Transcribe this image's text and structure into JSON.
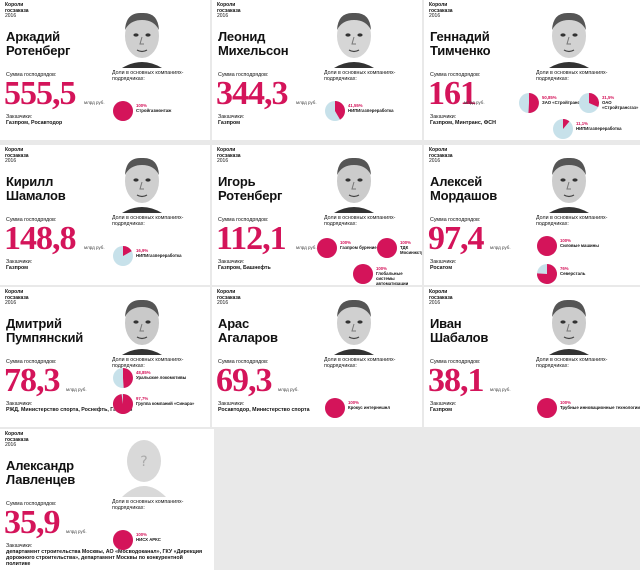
{
  "header": {
    "line1": "Короли",
    "line2": "госзаказа",
    "year": "2016"
  },
  "labels": {
    "sum": "Сумма господрядов:",
    "share": "Доли в основных компаниях-подрядчиках:",
    "customers": "Заказчики:",
    "unit": "млрд руб."
  },
  "colors": {
    "accent": "#d4145a",
    "share_light": "#c7e1ea"
  },
  "people": [
    {
      "name1": "Аркадий",
      "name2": "Ротенберг",
      "amount": "555,5",
      "customers": "Газпром, Росавтодор",
      "companies": [
        {
          "pct": "100%",
          "name": "Стройгазмонтаж",
          "share": 1.0
        }
      ]
    },
    {
      "name1": "Леонид",
      "name2": "Михельсон",
      "amount": "344,3",
      "customers": "Газпром",
      "companies": [
        {
          "pct": "41,55%",
          "name": "НИПИгазпереработка",
          "share": 0.4155
        }
      ]
    },
    {
      "name1": "Геннадий",
      "name2": "Тимченко",
      "amount": "161",
      "customers": "Газпром, Минтранс, ФСН",
      "companies": [
        {
          "pct": "50,85%",
          "name": "ЗАО «Стройтрансгаз»",
          "share": 0.5085
        },
        {
          "pct": "31,5%",
          "name": "ОАО «Стройтрансгаз»",
          "share": 0.315
        },
        {
          "pct": "11,1%",
          "name": "НИПИгазпереработка",
          "share": 0.111
        }
      ]
    },
    {
      "name1": "Кирилл",
      "name2": "Шамалов",
      "amount": "148,8",
      "customers": "Газпром",
      "companies": [
        {
          "pct": "16,9%",
          "name": "НИПИгазпереработка",
          "share": 0.169
        }
      ]
    },
    {
      "name1": "Игорь",
      "name2": "Ротенберг",
      "amount": "112,1",
      "customers": "Газпром, Башнефть",
      "companies": [
        {
          "pct": "100%",
          "name": "Газпром бурение",
          "share": 1.0
        },
        {
          "pct": "100%",
          "name": "ТДК Мосинжстр",
          "share": 1.0
        },
        {
          "pct": "100%",
          "name": "Глобальные системы автоматизации",
          "share": 1.0
        }
      ]
    },
    {
      "name1": "Алексей",
      "name2": "Мордашов",
      "amount": "97,4",
      "customers": "Росатом",
      "companies": [
        {
          "pct": "100%",
          "name": "Силовые машины",
          "share": 1.0
        },
        {
          "pct": "76%",
          "name": "Северсталь",
          "share": 0.76
        }
      ]
    },
    {
      "name1": "Дмитрий",
      "name2": "Пумпянский",
      "amount": "78,3",
      "customers": "РЖД, Министерство спорта, Роснефть, Газпром",
      "companies": [
        {
          "pct": "48,85%",
          "name": "Уральские локомотивы",
          "share": 0.4885
        },
        {
          "pct": "97,7%",
          "name": "Группа компаний «Синара»",
          "share": 0.977
        }
      ]
    },
    {
      "name1": "Арас",
      "name2": "Агаларов",
      "amount": "69,3",
      "customers": "Росавтодор, Министерство спорта",
      "companies": [
        {
          "pct": "100%",
          "name": "Крокус интернешнл",
          "share": 1.0
        }
      ]
    },
    {
      "name1": "Иван",
      "name2": "Шабалов",
      "amount": "38,1",
      "customers": "Газпром",
      "companies": [
        {
          "pct": "100%",
          "name": "Трубные инновационные технологии",
          "share": 1.0
        }
      ]
    },
    {
      "name1": "Александр",
      "name2": "Лавленцев",
      "amount": "35,9",
      "customers": "департамент строительства Москвы, АО «Мосводоканал», ГКУ «Дирекция дорожного строительства», департамент Москвы по конкурентной политике",
      "companies": [
        {
          "pct": "100%",
          "name": "НИСХ АРКС",
          "share": 1.0
        }
      ]
    }
  ]
}
